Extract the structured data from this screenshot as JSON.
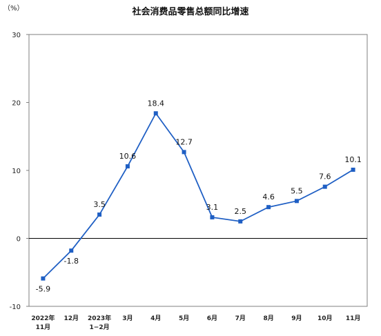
{
  "chart_data": {
    "type": "line",
    "title": "社会消费品零售总额同比增速",
    "unit": "（%）",
    "categories": [
      [
        "2022年",
        "11月"
      ],
      [
        "12月"
      ],
      [
        "2023年",
        "1−2月"
      ],
      [
        "3月"
      ],
      [
        "4月"
      ],
      [
        "5月"
      ],
      [
        "6月"
      ],
      [
        "7月"
      ],
      [
        "8月"
      ],
      [
        "9月"
      ],
      [
        "10月"
      ],
      [
        "11月"
      ]
    ],
    "series": [
      {
        "values": [
          -5.9,
          -1.8,
          3.5,
          10.6,
          18.4,
          12.7,
          3.1,
          2.5,
          4.6,
          5.5,
          7.6,
          10.1
        ],
        "labels": [
          "-5.9",
          "-1.8",
          "3.5",
          "10.6",
          "18.4",
          "12.7",
          "3.1",
          "2.5",
          "4.6",
          "5.5",
          "7.6",
          "10.1"
        ],
        "color": "#1f5fc4"
      }
    ],
    "ylim": [
      -10,
      30
    ],
    "yticks": [
      -10,
      0,
      10,
      20,
      30
    ],
    "grid": false,
    "legend": "none"
  }
}
